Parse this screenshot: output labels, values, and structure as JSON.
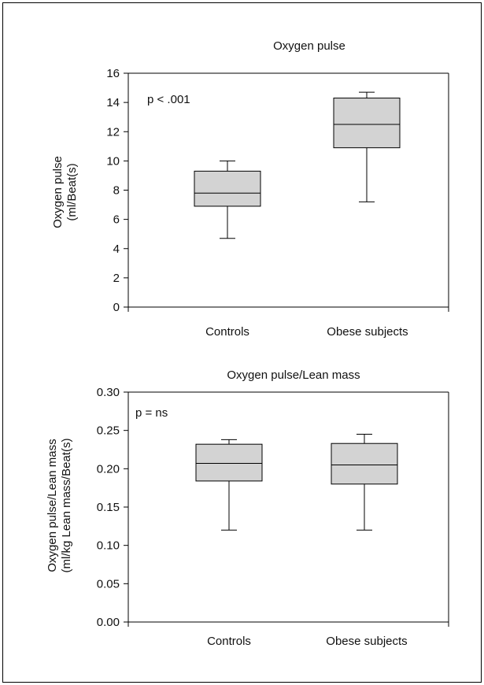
{
  "colors": {
    "box_fill": "#d3d3d3",
    "stroke": "#000000",
    "text": "#111111"
  },
  "chart_data": [
    {
      "type": "box",
      "title": "Oxygen pulse",
      "ylabel_line1": "Oxygen pulse",
      "ylabel_line2": "(ml/Beat(s)",
      "annotation": "p < .001",
      "ylim": [
        0,
        16
      ],
      "yticks": [
        0,
        2,
        4,
        6,
        8,
        10,
        12,
        14,
        16
      ],
      "ytick_labels": [
        "0",
        "2",
        "4",
        "6",
        "8",
        "10",
        "12",
        "14",
        "16"
      ],
      "categories": [
        "Controls",
        "Obese subjects"
      ],
      "boxes": [
        {
          "name": "Controls",
          "min": 4.7,
          "q1": 6.9,
          "median": 7.8,
          "q3": 9.3,
          "max": 10.0
        },
        {
          "name": "Obese subjects",
          "min": 7.2,
          "q1": 10.9,
          "median": 12.5,
          "q3": 14.3,
          "max": 14.7
        }
      ]
    },
    {
      "type": "box",
      "title": "Oxygen pulse/Lean mass",
      "ylabel_line1": "Oxygen pulse/Lean mass",
      "ylabel_line2": "(ml/kg Lean mass/Beat(s)",
      "annotation": "p = ns",
      "ylim": [
        0,
        0.3
      ],
      "yticks": [
        0,
        0.05,
        0.1,
        0.15,
        0.2,
        0.25,
        0.3
      ],
      "ytick_labels": [
        "0.00",
        "0.05",
        "0.10",
        "0.15",
        "0.20",
        "0.25",
        "0.30"
      ],
      "categories": [
        "Controls",
        "Obese subjects"
      ],
      "boxes": [
        {
          "name": "Controls",
          "min": 0.12,
          "q1": 0.184,
          "median": 0.207,
          "q3": 0.232,
          "max": 0.238
        },
        {
          "name": "Obese subjects",
          "min": 0.12,
          "q1": 0.18,
          "median": 0.205,
          "q3": 0.233,
          "max": 0.245
        }
      ]
    }
  ]
}
